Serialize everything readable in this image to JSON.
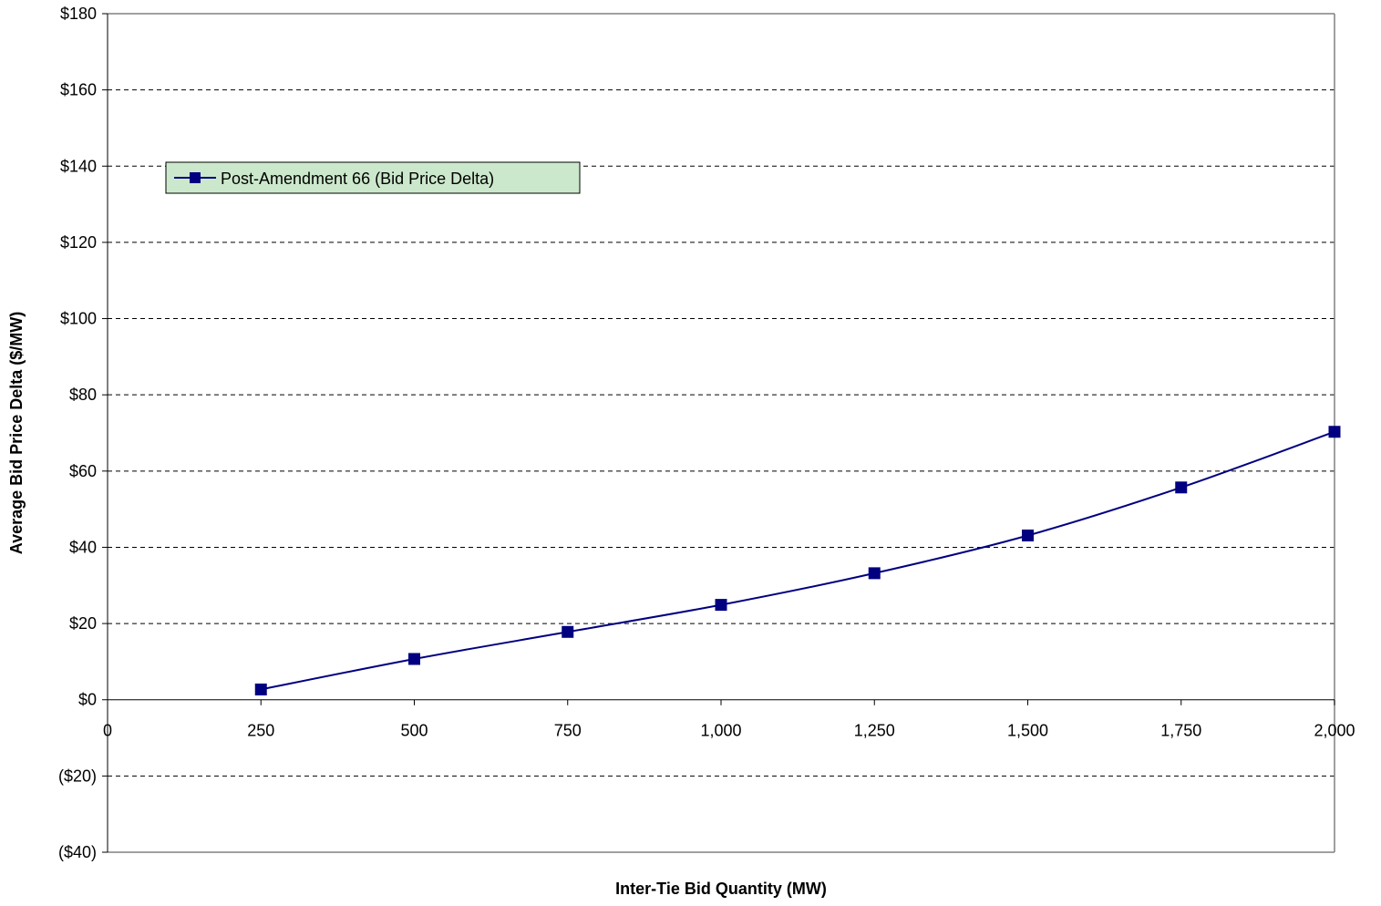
{
  "chart_data": {
    "type": "line",
    "title": "",
    "xlabel": "Inter-Tie Bid Quantity (MW)",
    "ylabel": "Average Bid Price Delta ($/MW)",
    "xlim": [
      0,
      2000
    ],
    "ylim": [
      -40,
      180
    ],
    "x_ticks": [
      0,
      250,
      500,
      750,
      1000,
      1250,
      1500,
      1750,
      2000
    ],
    "x_tick_labels": [
      "0",
      "250",
      "500",
      "750",
      "1,000",
      "1,250",
      "1,500",
      "1,750",
      "2,000"
    ],
    "y_ticks": [
      -40,
      -20,
      0,
      20,
      40,
      60,
      80,
      100,
      120,
      140,
      160,
      180
    ],
    "y_tick_labels": [
      "($40)",
      "($20)",
      "$0",
      "$20",
      "$40",
      "$60",
      "$80",
      "$100",
      "$120",
      "$140",
      "$160",
      "$180"
    ],
    "grid": "horizontal dashed",
    "legend_position": "upper-left",
    "series": [
      {
        "name": "Post-Amendment 66 (Bid Price Delta)",
        "color": "#000080",
        "marker": "square",
        "x": [
          250,
          500,
          750,
          1000,
          1250,
          1500,
          1750,
          2000
        ],
        "y": [
          2.7,
          10.7,
          17.8,
          24.9,
          33.2,
          43.1,
          55.7,
          70.3
        ]
      }
    ],
    "legend_bg": "#cce8cc"
  }
}
